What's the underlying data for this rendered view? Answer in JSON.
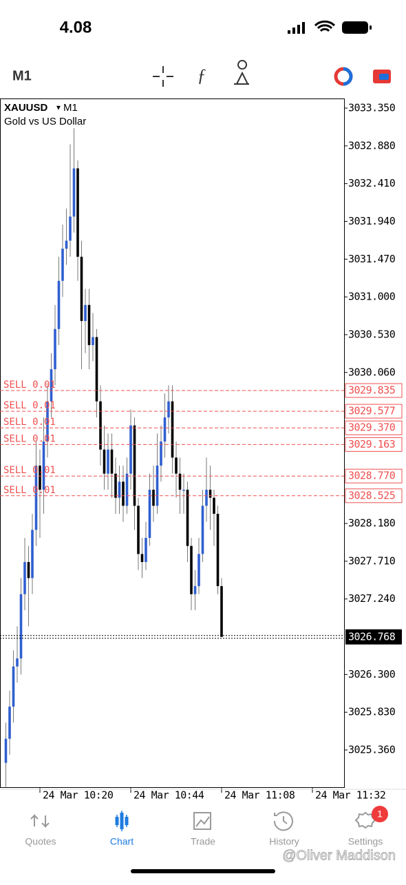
{
  "status_bar": {
    "time": "4.08"
  },
  "toolbar": {
    "timeframe": "M1"
  },
  "chart_data": {
    "type": "candlestick",
    "symbol": "XAUUSD",
    "timeframe": "M1",
    "description": "Gold vs US Dollar",
    "up_color": "#2f5fd0",
    "down_color": "#000000",
    "order_color": "#ef4f4f",
    "open": [
      3025.2,
      3025.5,
      3025.9,
      3026.4,
      3026.5,
      3027.3,
      3027.7,
      3027.5,
      3028.1,
      3028.9,
      3028.6,
      3029.2,
      3029.7,
      3030.1,
      3030.6,
      3031.2,
      3031.6,
      3031.7,
      3032.0,
      3032.6,
      3031.5,
      3030.7,
      3030.9,
      3030.4,
      3030.5,
      3029.7,
      3029.1,
      3028.8,
      3029.1,
      3028.8,
      3028.5,
      3028.7,
      3028.4,
      3028.8,
      3029.4,
      3028.4,
      3027.8,
      3027.7,
      3028.0,
      3028.6,
      3028.4,
      3028.9,
      3029.2,
      3029.5,
      3029.7,
      3029.0,
      3028.8,
      3028.6,
      3028.6,
      3027.9,
      3027.3,
      3027.4,
      3027.8,
      3028.4,
      3028.6,
      3028.5,
      3028.3,
      3027.4
    ],
    "high": [
      3025.7,
      3026.1,
      3026.6,
      3026.9,
      3027.5,
      3028.0,
      3027.9,
      3028.3,
      3029.2,
      3029.1,
      3029.5,
      3029.9,
      3030.3,
      3030.9,
      3031.5,
      3031.9,
      3032.1,
      3032.9,
      3033.1,
      3032.7,
      3031.7,
      3031.1,
      3031.1,
      3030.8,
      3030.6,
      3029.9,
      3029.4,
      3029.3,
      3029.3,
      3029.0,
      3028.9,
      3028.9,
      3029.0,
      3029.6,
      3029.5,
      3028.5,
      3028.0,
      3028.2,
      3028.8,
      3028.9,
      3029.3,
      3029.4,
      3029.8,
      3029.9,
      3029.9,
      3029.2,
      3029.0,
      3028.8,
      3028.7,
      3028.0,
      3027.6,
      3028.0,
      3028.6,
      3029.0,
      3028.9,
      3028.6,
      3028.4,
      3027.5
    ],
    "low": [
      3024.9,
      3025.3,
      3025.7,
      3026.2,
      3026.3,
      3027.1,
      3026.9,
      3027.3,
      3027.9,
      3028.0,
      3028.3,
      3029.0,
      3029.5,
      3029.9,
      3030.4,
      3031.0,
      3031.4,
      3031.5,
      3031.8,
      3031.2,
      3030.1,
      3030.3,
      3030.1,
      3030.2,
      3029.5,
      3028.9,
      3028.6,
      3028.6,
      3028.5,
      3028.3,
      3028.3,
      3028.2,
      3028.3,
      3028.6,
      3028.1,
      3027.6,
      3027.5,
      3027.6,
      3027.9,
      3028.2,
      3028.3,
      3028.7,
      3029.0,
      3029.3,
      3028.8,
      3028.5,
      3028.3,
      3028.3,
      3027.7,
      3027.1,
      3027.1,
      3027.3,
      3027.7,
      3028.2,
      3028.1,
      3027.9,
      3027.3,
      3026.768
    ],
    "close": [
      3025.5,
      3025.9,
      3026.4,
      3026.5,
      3027.3,
      3027.7,
      3027.5,
      3028.1,
      3028.9,
      3028.6,
      3029.2,
      3029.7,
      3030.1,
      3030.6,
      3031.2,
      3031.6,
      3031.7,
      3032.0,
      3032.6,
      3031.5,
      3030.7,
      3030.9,
      3030.4,
      3030.5,
      3029.7,
      3029.1,
      3028.8,
      3029.1,
      3028.8,
      3028.5,
      3028.7,
      3028.4,
      3028.8,
      3029.4,
      3028.4,
      3027.8,
      3027.7,
      3028.0,
      3028.6,
      3028.4,
      3028.9,
      3029.2,
      3029.5,
      3029.7,
      3029.0,
      3028.8,
      3028.6,
      3028.6,
      3027.9,
      3027.3,
      3027.4,
      3027.8,
      3028.4,
      3028.6,
      3028.5,
      3028.3,
      3027.4,
      3026.768
    ],
    "ylim": [
      3024.897,
      3033.47
    ],
    "yticks": [
      {
        "value": 3033.35,
        "label": "3033.350"
      },
      {
        "value": 3032.88,
        "label": "3032.880"
      },
      {
        "value": 3032.41,
        "label": "3032.410"
      },
      {
        "value": 3031.94,
        "label": "3031.940"
      },
      {
        "value": 3031.47,
        "label": "3031.470"
      },
      {
        "value": 3031.0,
        "label": "3031.000"
      },
      {
        "value": 3030.53,
        "label": "3030.530"
      },
      {
        "value": 3030.06,
        "label": "3030.060"
      },
      {
        "value": 3028.18,
        "label": "3028.180"
      },
      {
        "value": 3027.71,
        "label": "3027.710"
      },
      {
        "value": 3027.24,
        "label": "3027.240"
      },
      {
        "value": 3026.3,
        "label": "3026.300"
      },
      {
        "value": 3025.83,
        "label": "3025.830"
      },
      {
        "value": 3025.36,
        "label": "3025.360"
      }
    ],
    "xlim": [
      -1.545,
      89.36
    ],
    "xticks": [
      {
        "value": 9,
        "label": "24 Mar 10:20"
      },
      {
        "value": 33,
        "label": "24 Mar 10:44"
      },
      {
        "value": 57,
        "label": "24 Mar 11:08"
      },
      {
        "value": 81,
        "label": "24 Mar 11:32"
      }
    ],
    "current_price": {
      "value": 3026.768,
      "label": "3026.768"
    },
    "orders": [
      {
        "label": "SELL 0.01",
        "price": {
          "value": 3029.835,
          "label": "3029.835"
        }
      },
      {
        "label": "SELL 0.01",
        "price": {
          "value": 3029.577,
          "label": "3029.577"
        }
      },
      {
        "label": "SELL 0.01",
        "price": {
          "value": 3029.37,
          "label": "3029.370"
        }
      },
      {
        "label": "SELL 0.01",
        "price": {
          "value": 3029.163,
          "label": "3029.163"
        }
      },
      {
        "label": "SELL 0.01",
        "price": {
          "value": 3028.77,
          "label": "3028.770"
        }
      },
      {
        "label": "SELL 0.01",
        "price": {
          "value": 3028.525,
          "label": "3028.525"
        }
      }
    ]
  },
  "nav": {
    "items": [
      "Quotes",
      "Chart",
      "Trade",
      "History",
      "Settings"
    ],
    "badge": "1"
  },
  "watermark": "@Oliver Maddison"
}
